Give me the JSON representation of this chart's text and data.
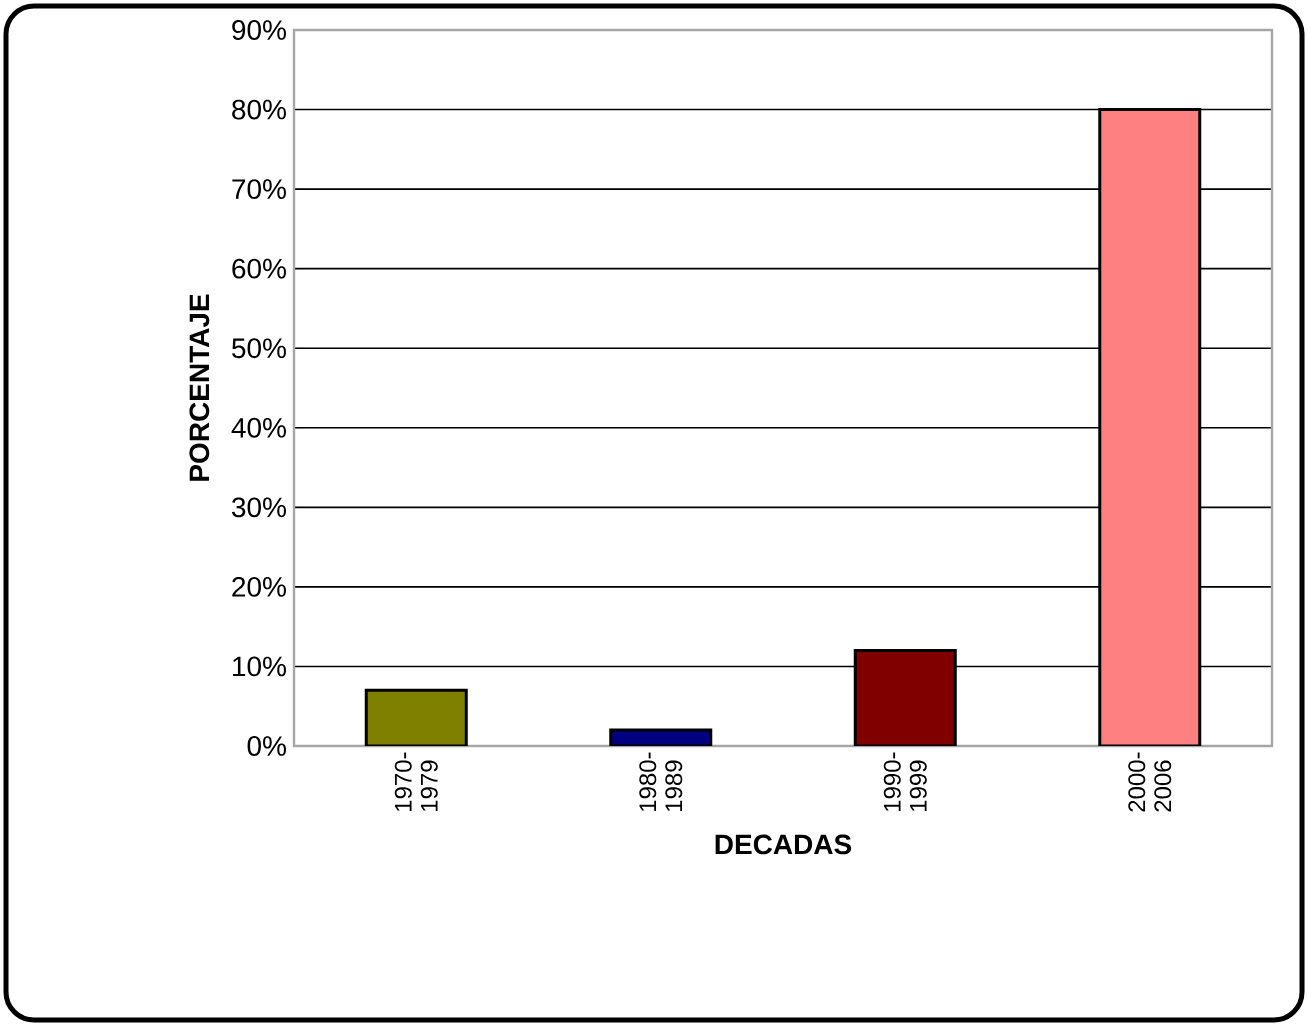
{
  "chart_data": {
    "type": "bar",
    "xlabel": "DECADAS",
    "ylabel": "PORCENTAJE",
    "categories": [
      "1970-1979",
      "1980-1989",
      "1990-1999",
      "2000-2006"
    ],
    "values": [
      7,
      2,
      12,
      80
    ],
    "colors": [
      "#808000",
      "#000080",
      "#800000",
      "#ff8080"
    ],
    "ylim": [
      0,
      90
    ],
    "yticks": [
      {
        "value": 0,
        "label": "0%"
      },
      {
        "value": 10,
        "label": "10%"
      },
      {
        "value": 20,
        "label": "20%"
      },
      {
        "value": 30,
        "label": "30%"
      },
      {
        "value": 40,
        "label": "40%"
      },
      {
        "value": 50,
        "label": "50%"
      },
      {
        "value": 60,
        "label": "60%"
      },
      {
        "value": 70,
        "label": "70%"
      },
      {
        "value": 80,
        "label": "80%"
      },
      {
        "value": 90,
        "label": "90%"
      }
    ],
    "grid": "y"
  }
}
